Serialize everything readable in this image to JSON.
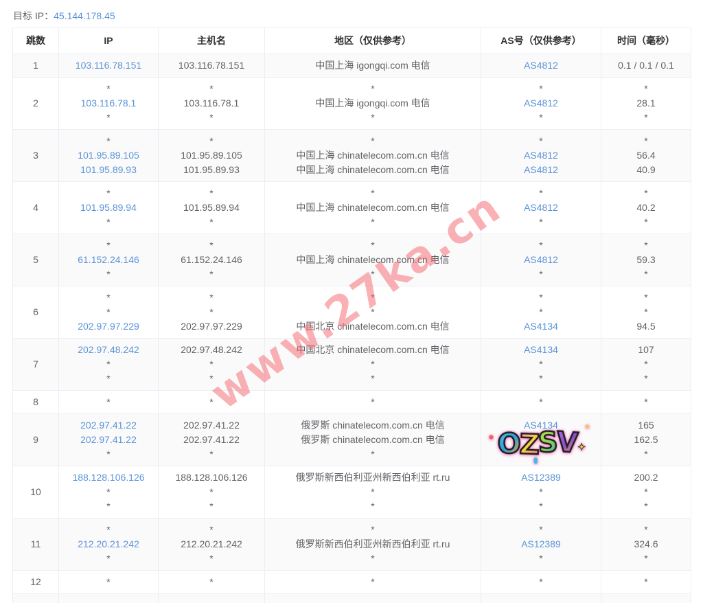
{
  "page": {
    "target_ip_label": "目标 IP：",
    "target_ip_value": "45.144.178.45"
  },
  "table": {
    "columns": [
      "跳数",
      "IP",
      "主机名",
      "地区（仅供参考）",
      "AS号（仅供参考）",
      "时间（毫秒）"
    ],
    "rows": [
      {
        "hop": "1",
        "ip": [
          "103.116.78.151"
        ],
        "host": [
          "103.116.78.151"
        ],
        "region": [
          "中国上海 igongqi.com 电信"
        ],
        "asn": [
          "AS4812"
        ],
        "time": [
          "0.1 / 0.1 / 0.1"
        ]
      },
      {
        "hop": "2",
        "ip": [
          "*",
          "103.116.78.1",
          "*"
        ],
        "host": [
          "*",
          "103.116.78.1",
          "*"
        ],
        "region": [
          "*",
          "中国上海 igongqi.com 电信",
          "*"
        ],
        "asn": [
          "*",
          "AS4812",
          "*"
        ],
        "time": [
          "*",
          "28.1",
          "*"
        ]
      },
      {
        "hop": "3",
        "ip": [
          "*",
          "101.95.89.105",
          "101.95.89.93"
        ],
        "host": [
          "*",
          "101.95.89.105",
          "101.95.89.93"
        ],
        "region": [
          "*",
          "中国上海 chinatelecom.com.cn 电信",
          "中国上海 chinatelecom.com.cn 电信"
        ],
        "asn": [
          "*",
          "AS4812",
          "AS4812"
        ],
        "time": [
          "*",
          "56.4",
          "40.9"
        ]
      },
      {
        "hop": "4",
        "ip": [
          "*",
          "101.95.89.94",
          "*"
        ],
        "host": [
          "*",
          "101.95.89.94",
          "*"
        ],
        "region": [
          "*",
          "中国上海 chinatelecom.com.cn 电信",
          "*"
        ],
        "asn": [
          "*",
          "AS4812",
          "*"
        ],
        "time": [
          "*",
          "40.2",
          "*"
        ]
      },
      {
        "hop": "5",
        "ip": [
          "*",
          "61.152.24.146",
          "*"
        ],
        "host": [
          "*",
          "61.152.24.146",
          "*"
        ],
        "region": [
          "*",
          "中国上海 chinatelecom.com.cn 电信",
          "*"
        ],
        "asn": [
          "*",
          "AS4812",
          "*"
        ],
        "time": [
          "*",
          "59.3",
          "*"
        ]
      },
      {
        "hop": "6",
        "ip": [
          "*",
          "*",
          "202.97.97.229"
        ],
        "host": [
          "*",
          "*",
          "202.97.97.229"
        ],
        "region": [
          "*",
          "*",
          "中国北京 chinatelecom.com.cn 电信"
        ],
        "asn": [
          "*",
          "*",
          "AS4134"
        ],
        "time": [
          "*",
          "*",
          "94.5"
        ]
      },
      {
        "hop": "7",
        "ip": [
          "202.97.48.242",
          "*",
          "*"
        ],
        "host": [
          "202.97.48.242",
          "*",
          "*"
        ],
        "region": [
          "中国北京 chinatelecom.com.cn 电信",
          "*",
          "*"
        ],
        "asn": [
          "AS4134",
          "*",
          "*"
        ],
        "time": [
          "107",
          "*",
          "*"
        ]
      },
      {
        "hop": "8",
        "ip": [
          "*"
        ],
        "host": [
          "*"
        ],
        "region": [
          "*"
        ],
        "asn": [
          "*"
        ],
        "time": [
          "*"
        ]
      },
      {
        "hop": "9",
        "ip": [
          "202.97.41.22",
          "202.97.41.22",
          "*"
        ],
        "host": [
          "202.97.41.22",
          "202.97.41.22",
          "*"
        ],
        "region": [
          "俄罗斯 chinatelecom.com.cn 电信",
          "俄罗斯 chinatelecom.com.cn 电信",
          "*"
        ],
        "asn": [
          "AS4134",
          "",
          ""
        ],
        "time": [
          "165",
          "162.5",
          "*"
        ],
        "sticker": true
      },
      {
        "hop": "10",
        "ip": [
          "188.128.106.126",
          "*",
          "*"
        ],
        "host": [
          "188.128.106.126",
          "*",
          "*"
        ],
        "region": [
          "俄罗斯新西伯利亚州新西伯利亚 rt.ru",
          "*",
          "*"
        ],
        "asn": [
          "AS12389",
          "*",
          "*"
        ],
        "time": [
          "200.2",
          "*",
          "*"
        ]
      },
      {
        "hop": "11",
        "ip": [
          "*",
          "212.20.21.242",
          "*"
        ],
        "host": [
          "*",
          "212.20.21.242",
          "*"
        ],
        "region": [
          "*",
          "俄罗斯新西伯利亚州新西伯利亚 rt.ru",
          "*"
        ],
        "asn": [
          "*",
          "AS12389",
          "*"
        ],
        "time": [
          "*",
          "324.6",
          "*"
        ]
      },
      {
        "hop": "12",
        "ip": [
          "*"
        ],
        "host": [
          "*"
        ],
        "region": [
          "*"
        ],
        "asn": [
          "*"
        ],
        "time": [
          "*"
        ]
      },
      {
        "hop": "",
        "ip": [
          ""
        ],
        "host": [
          ""
        ],
        "region": [
          ""
        ],
        "asn": [
          ""
        ],
        "time": [
          ""
        ]
      }
    ]
  },
  "watermark": {
    "text": "www.27ka.cn",
    "color": "rgba(245,99,108,0.5)"
  },
  "sticker": {
    "text": "OZSV",
    "sparkle": "✦",
    "letters": [
      {
        "ch": "O",
        "colors": [
          "#4fc3ec",
          "#2f9fd8",
          "#f6a83c"
        ]
      },
      {
        "ch": "Z",
        "colors": [
          "#f78dc0",
          "#f5d442",
          "#f06eaa"
        ]
      },
      {
        "ch": "S",
        "colors": [
          "#bfe34c",
          "#8fd35a",
          "#35b6a0"
        ]
      },
      {
        "ch": "V",
        "colors": [
          "#b06ee0",
          "#8a4fd0",
          "#f6a83c"
        ]
      }
    ]
  },
  "colors": {
    "link": "#5a93d8",
    "border": "#ebeef5",
    "stripe": "#fafafa",
    "text": "#606266",
    "header_text": "#303133"
  }
}
